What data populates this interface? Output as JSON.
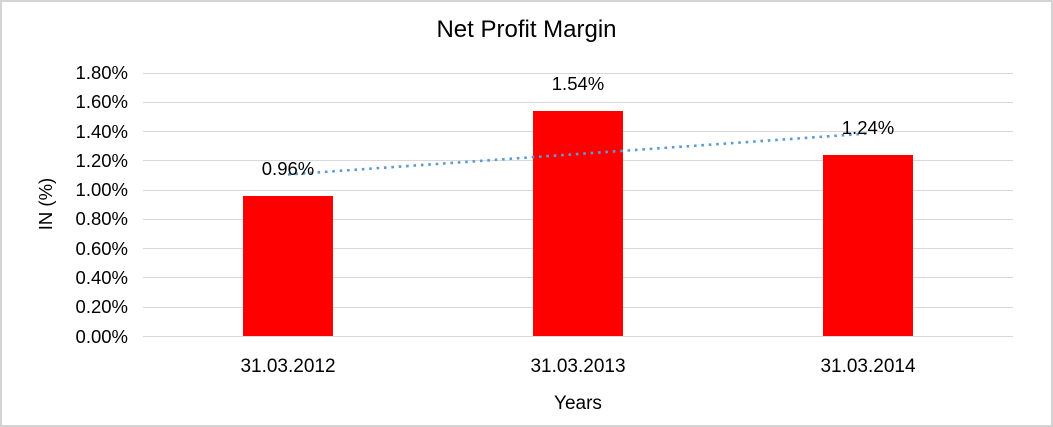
{
  "chart_data": {
    "type": "bar",
    "title": "Net Profit Margin",
    "categories": [
      "31.03.2012",
      "31.03.2013",
      "31.03.2014"
    ],
    "values": [
      0.96,
      1.54,
      1.24
    ],
    "data_labels": [
      "0.96%",
      "1.54%",
      "1.24%"
    ],
    "xlabel": "Years",
    "ylabel": "IN (%)",
    "ylim": [
      0,
      1.8
    ],
    "ytick_step": 0.2,
    "ytick_labels": [
      "0.00%",
      "0.20%",
      "0.40%",
      "0.60%",
      "0.80%",
      "1.00%",
      "1.20%",
      "1.40%",
      "1.60%",
      "1.80%"
    ],
    "grid": true,
    "legend": "none",
    "bar_color": "#ff0000",
    "trendline": {
      "type": "linear",
      "style": "dotted",
      "color": "#5b9bd5",
      "start_value": 1.1067,
      "end_value": 1.3867
    }
  },
  "colors": {
    "background": "#ffffff",
    "border": "#d3d3d3",
    "gridline": "#d9d9d9",
    "text": "#000000",
    "bar": "#ff0000",
    "trendline": "#5b9bd5"
  }
}
